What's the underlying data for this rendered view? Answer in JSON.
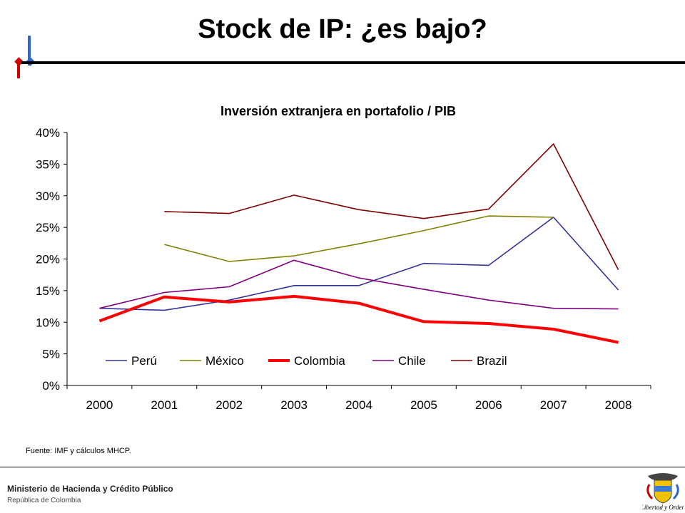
{
  "slide": {
    "title": "Stock de IP: ¿es bajo?",
    "source_note": "Fuente: IMF y cálculos MHCP.",
    "footer": {
      "organization": "Ministerio de Hacienda y Crédito Público",
      "subtitle": "República de Colombia",
      "seal_motto": "Libertad y Orden"
    }
  },
  "chart_data": {
    "type": "line",
    "title": "Inversión extranjera en portafolio / PIB",
    "xlabel": "",
    "ylabel": "",
    "categories": [
      "2000",
      "2001",
      "2002",
      "2003",
      "2004",
      "2005",
      "2006",
      "2007",
      "2008"
    ],
    "ylim": [
      0,
      40
    ],
    "yticks": [
      "0%",
      "5%",
      "10%",
      "15%",
      "20%",
      "25%",
      "30%",
      "35%",
      "40%"
    ],
    "grid": false,
    "legend_position": "bottom-inside",
    "series": [
      {
        "name": "Perú",
        "color": "#333399",
        "emphasis": false,
        "values": [
          12.2,
          11.9,
          13.5,
          15.8,
          15.8,
          19.3,
          19.0,
          26.6,
          15.1
        ]
      },
      {
        "name": "México",
        "color": "#808000",
        "emphasis": false,
        "values": [
          null,
          22.3,
          19.6,
          20.5,
          22.4,
          24.5,
          26.8,
          26.6,
          null
        ]
      },
      {
        "name": "Colombia",
        "color": "#ff0000",
        "emphasis": true,
        "values": [
          10.2,
          14.0,
          13.2,
          14.1,
          13.0,
          10.1,
          9.8,
          8.9,
          6.8
        ]
      },
      {
        "name": "Chile",
        "color": "#800080",
        "emphasis": false,
        "values": [
          12.2,
          14.7,
          15.6,
          19.8,
          17.0,
          15.2,
          13.5,
          12.2,
          12.1
        ]
      },
      {
        "name": "Brazil",
        "color": "#800000",
        "emphasis": false,
        "values": [
          null,
          27.5,
          27.2,
          30.1,
          27.8,
          26.4,
          27.9,
          38.2,
          18.3
        ]
      }
    ]
  }
}
